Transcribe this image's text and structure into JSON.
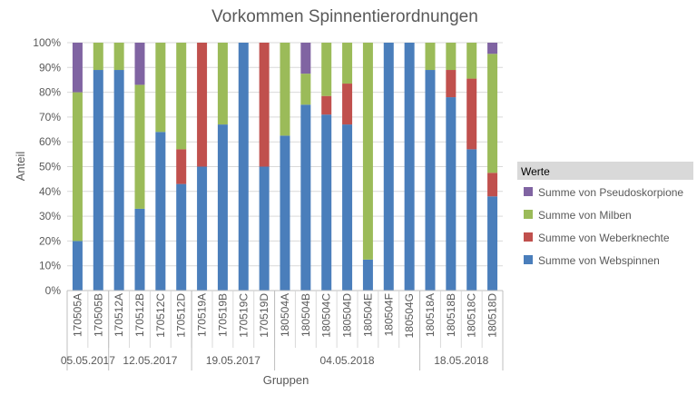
{
  "chart_data": {
    "type": "bar",
    "stacked": true,
    "percent": true,
    "title": "Vorkommen Spinnentierordnungen",
    "ylabel": "Anteil",
    "xlabel": "Gruppen",
    "ylim": [
      0,
      100
    ],
    "yticks": [
      "0%",
      "10%",
      "20%",
      "30%",
      "40%",
      "50%",
      "60%",
      "70%",
      "80%",
      "90%",
      "100%"
    ],
    "categories": [
      "170505A",
      "170505B",
      "170512A",
      "170512B",
      "170512C",
      "170512D",
      "170519A",
      "170519B",
      "170519C",
      "170519D",
      "180504A",
      "180504B",
      "180504C",
      "180504D",
      "180504E",
      "180504F",
      "180504G",
      "180518A",
      "180518B",
      "180518C",
      "180518D"
    ],
    "groups": [
      {
        "label": "05.05.2017",
        "start": 0,
        "end": 1
      },
      {
        "label": "12.05.2017",
        "start": 2,
        "end": 5
      },
      {
        "label": "19.05.2017",
        "start": 6,
        "end": 9
      },
      {
        "label": "04.05.2018",
        "start": 10,
        "end": 16
      },
      {
        "label": "18.05.2018",
        "start": 17,
        "end": 20
      }
    ],
    "legend_title": "Werte",
    "legend_position": "right",
    "series": [
      {
        "name": "Summe von Webspinnen",
        "color": "#4a7ebb",
        "values": [
          20,
          89,
          89,
          33,
          64,
          43,
          50,
          67,
          100,
          50,
          62.5,
          75,
          71,
          67,
          12.5,
          100,
          100,
          89,
          78,
          57,
          38
        ]
      },
      {
        "name": "Summe von Weberknechte",
        "color": "#c0504d",
        "values": [
          0,
          0,
          0,
          0,
          0,
          14,
          50,
          0,
          0,
          50,
          0,
          0,
          7.5,
          16.5,
          0,
          0,
          0,
          0,
          11,
          28.5,
          9.5
        ]
      },
      {
        "name": "Summe von Milben",
        "color": "#9bbb59",
        "values": [
          60,
          11,
          11,
          50,
          36,
          43,
          0,
          33,
          0,
          0,
          37.5,
          12.5,
          21.5,
          16.5,
          87.5,
          0,
          0,
          11,
          11,
          14.5,
          48
        ]
      },
      {
        "name": "Summe von Pseudoskorpione",
        "color": "#8064a2",
        "values": [
          20,
          0,
          0,
          17,
          0,
          0,
          0,
          0,
          0,
          0,
          0,
          12.5,
          0,
          0,
          0,
          0,
          0,
          0,
          0,
          0,
          4.5
        ]
      }
    ]
  }
}
